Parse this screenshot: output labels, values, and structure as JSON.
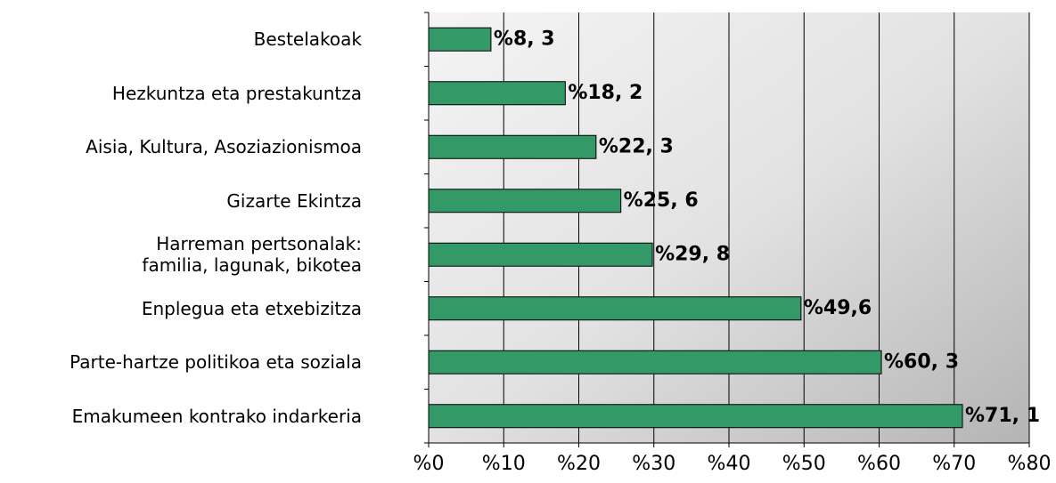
{
  "chart_data": {
    "type": "bar",
    "orientation": "horizontal",
    "categories": [
      "Bestelakoak",
      "Hezkuntza eta prestakuntza",
      "Aisia, Kultura, Asoziazionismoa",
      "Gizarte Ekintza",
      "Harreman pertsonalak:\nfamilia, lagunak, bikotea",
      "Enplegua eta etxebizitza",
      "Parte-hartze politikoa eta soziala",
      "Emakumeen kontrako indarkeria"
    ],
    "values": [
      8.3,
      18.2,
      22.3,
      25.6,
      29.8,
      49.6,
      60.3,
      71.1
    ],
    "value_labels": [
      "%8, 3",
      "%18, 2",
      "%22, 3",
      "%25, 6",
      "%29, 8",
      "%49,6",
      "%60, 3",
      "%71, 1"
    ],
    "color": "#339966",
    "xlim": [
      0,
      80
    ],
    "xticks": [
      {
        "value": 0,
        "label": "%0"
      },
      {
        "value": 10,
        "label": "%10"
      },
      {
        "value": 20,
        "label": "%20"
      },
      {
        "value": 30,
        "label": "%30"
      },
      {
        "value": 40,
        "label": "%40"
      },
      {
        "value": 50,
        "label": "%50"
      },
      {
        "value": 60,
        "label": "%60"
      },
      {
        "value": 70,
        "label": "%70"
      },
      {
        "value": 80,
        "label": "%80"
      }
    ],
    "grid": true
  }
}
